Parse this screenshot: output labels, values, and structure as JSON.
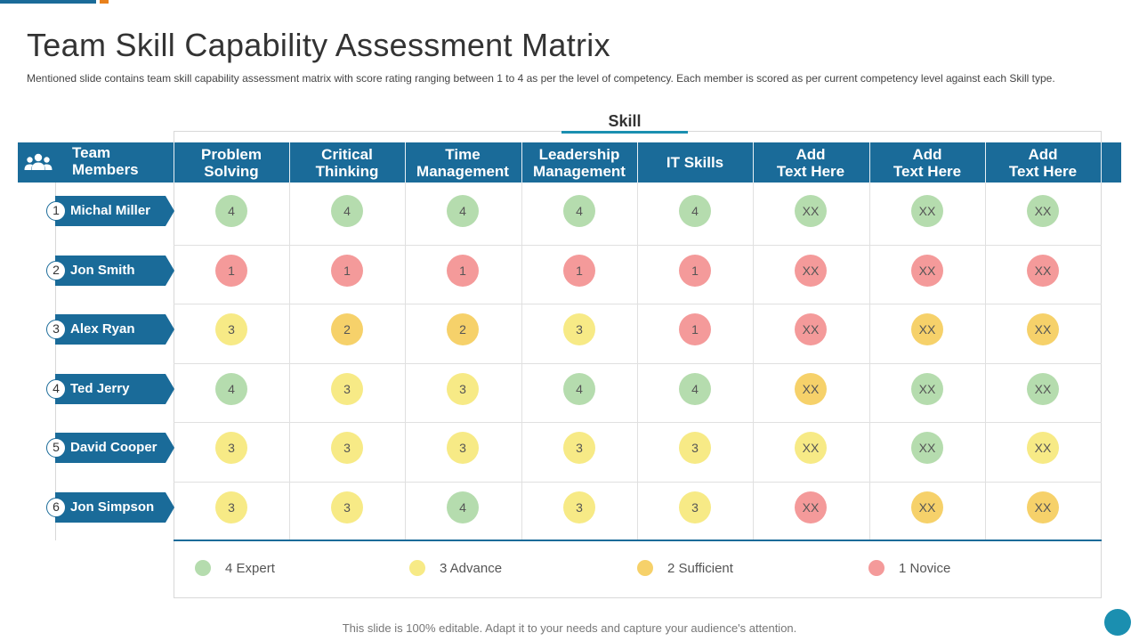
{
  "slide": {
    "title": "Team Skill Capability Assessment Matrix",
    "subtitle": "Mentioned slide contains team skill capability assessment matrix with score rating ranging between 1 to 4 as per the level of competency. Each member is scored as per current competency level against each Skill type.",
    "skill_label": "Skill",
    "footer": "This slide is 100% editable. Adapt it to your needs and capture your audience's attention."
  },
  "table": {
    "team_header": "Team\nMembers",
    "team_icon": "team-icon",
    "columns": [
      "Problem\nSolving",
      "Critical\nThinking",
      "Time\nManagement",
      "Leadership\nManagement",
      "IT Skills",
      "Add\nText Here",
      "Add\nText Here",
      "Add\nText Here"
    ],
    "rows": [
      {
        "num": "1",
        "name": "Michal Miller",
        "scores": [
          "4",
          "4",
          "4",
          "4",
          "4",
          "XX",
          "XX",
          "XX"
        ],
        "levels": [
          "4",
          "4",
          "4",
          "4",
          "4",
          "4",
          "4",
          "4"
        ]
      },
      {
        "num": "2",
        "name": "Jon Smith",
        "scores": [
          "1",
          "1",
          "1",
          "1",
          "1",
          "XX",
          "XX",
          "XX"
        ],
        "levels": [
          "1",
          "1",
          "1",
          "1",
          "1",
          "1",
          "1",
          "1"
        ]
      },
      {
        "num": "3",
        "name": "Alex Ryan",
        "scores": [
          "3",
          "2",
          "2",
          "3",
          "1",
          "XX",
          "XX",
          "XX"
        ],
        "levels": [
          "3",
          "2",
          "2",
          "3",
          "1",
          "1",
          "2",
          "2"
        ]
      },
      {
        "num": "4",
        "name": "Ted Jerry",
        "scores": [
          "4",
          "3",
          "3",
          "4",
          "4",
          "XX",
          "XX",
          "XX"
        ],
        "levels": [
          "4",
          "3",
          "3",
          "4",
          "4",
          "2",
          "4",
          "4"
        ]
      },
      {
        "num": "5",
        "name": "David Cooper",
        "scores": [
          "3",
          "3",
          "3",
          "3",
          "3",
          "XX",
          "XX",
          "XX"
        ],
        "levels": [
          "3",
          "3",
          "3",
          "3",
          "3",
          "3",
          "4",
          "3"
        ]
      },
      {
        "num": "6",
        "name": "Jon Simpson",
        "scores": [
          "3",
          "3",
          "4",
          "3",
          "3",
          "XX",
          "XX",
          "XX"
        ],
        "levels": [
          "3",
          "3",
          "4",
          "3",
          "3",
          "1",
          "2",
          "2"
        ]
      }
    ]
  },
  "level_colors": {
    "4": "#b5dcae",
    "3": "#f7ea86",
    "2": "#f6d16a",
    "1": "#f49a9a"
  },
  "legend": [
    {
      "level": "4",
      "label": "4 Expert"
    },
    {
      "level": "3",
      "label": "3 Advance"
    },
    {
      "level": "2",
      "label": "2 Sufficient"
    },
    {
      "level": "1",
      "label": "1 Novice"
    }
  ],
  "colors": {
    "header": "#1a6b99",
    "accent": "#1b8fb0",
    "orange": "#e8811c"
  }
}
